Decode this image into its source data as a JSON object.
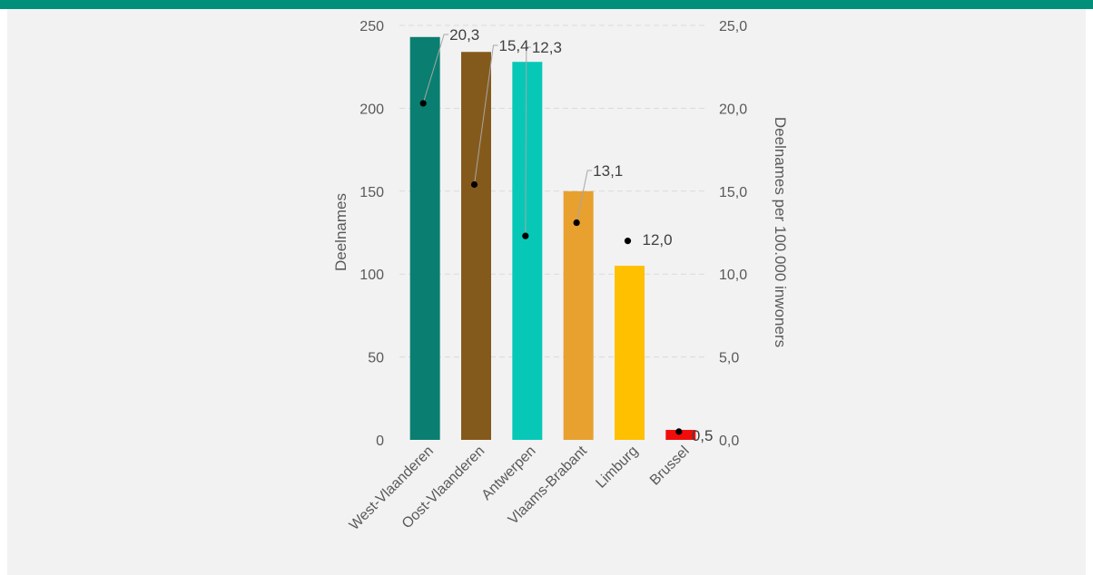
{
  "colors": {
    "header": "#00907a",
    "background": "#f2f2f2",
    "grid": "#d9d9d9",
    "text": "#595959",
    "marker": "#000000",
    "leader": "#a6a6a6"
  },
  "chart_data": {
    "type": "bar",
    "title": "",
    "categories": [
      "West-Vlaanderen",
      "Oost-Vlaanderen",
      "Antwerpen",
      "Vlaams-Brabant",
      "Limburg",
      "Brussel"
    ],
    "bar_colors": [
      "#0a7f71",
      "#845a1c",
      "#07c8b7",
      "#e8a02f",
      "#ffc000",
      "#f10d0c"
    ],
    "series": [
      {
        "axis": "left",
        "values": [
          243,
          234,
          228,
          150,
          105,
          6
        ]
      },
      {
        "axis": "right",
        "type": "scatter",
        "values": [
          20.3,
          15.4,
          12.3,
          13.1,
          12.0,
          0.5
        ],
        "labels": [
          "20,3",
          "15,4",
          "12,3",
          "13,1",
          "12,0",
          "0,5"
        ]
      }
    ],
    "ylabel": "Deelnames",
    "y2label": "Deelnames per 100.000 inwoners",
    "ylim": [
      0,
      250
    ],
    "y2lim": [
      0,
      25
    ],
    "yticks": [
      "0",
      "50",
      "100",
      "150",
      "200",
      "250"
    ],
    "y2ticks": [
      "0,0",
      "5,0",
      "10,0",
      "15,0",
      "20,0",
      "25,0"
    ],
    "grid": true,
    "legend": "none"
  }
}
